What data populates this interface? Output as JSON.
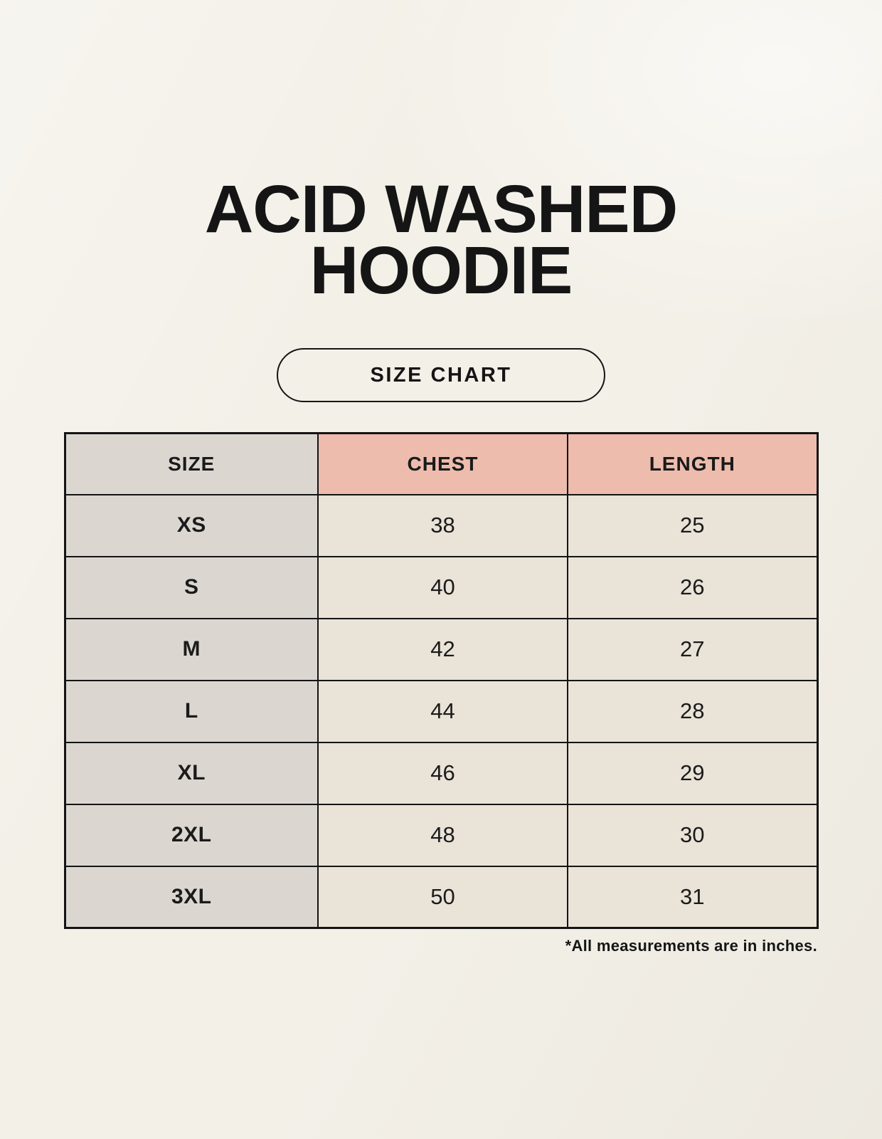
{
  "page": {
    "title": {
      "line1": "ACID WASHED",
      "line2": "HOODIE"
    },
    "badge_label": "SIZE CHART",
    "footnote": "*All measurements are in inches."
  },
  "table": {
    "columns": [
      "SIZE",
      "CHEST",
      "LENGTH"
    ],
    "rows": [
      {
        "size": "XS",
        "chest": "38",
        "length": "25"
      },
      {
        "size": "S",
        "chest": "40",
        "length": "26"
      },
      {
        "size": "M",
        "chest": "42",
        "length": "27"
      },
      {
        "size": "L",
        "chest": "44",
        "length": "28"
      },
      {
        "size": "XL",
        "chest": "46",
        "length": "29"
      },
      {
        "size": "2XL",
        "chest": "48",
        "length": "30"
      },
      {
        "size": "3XL",
        "chest": "50",
        "length": "31"
      }
    ]
  },
  "colors": {
    "background": "#f3f0e8",
    "size_column_bg": "#dcd6d1",
    "measure_header_bg": "#edbcad",
    "data_cell_bg": "#e9e3d8",
    "border": "#141414",
    "text": "#1b1b1b"
  }
}
